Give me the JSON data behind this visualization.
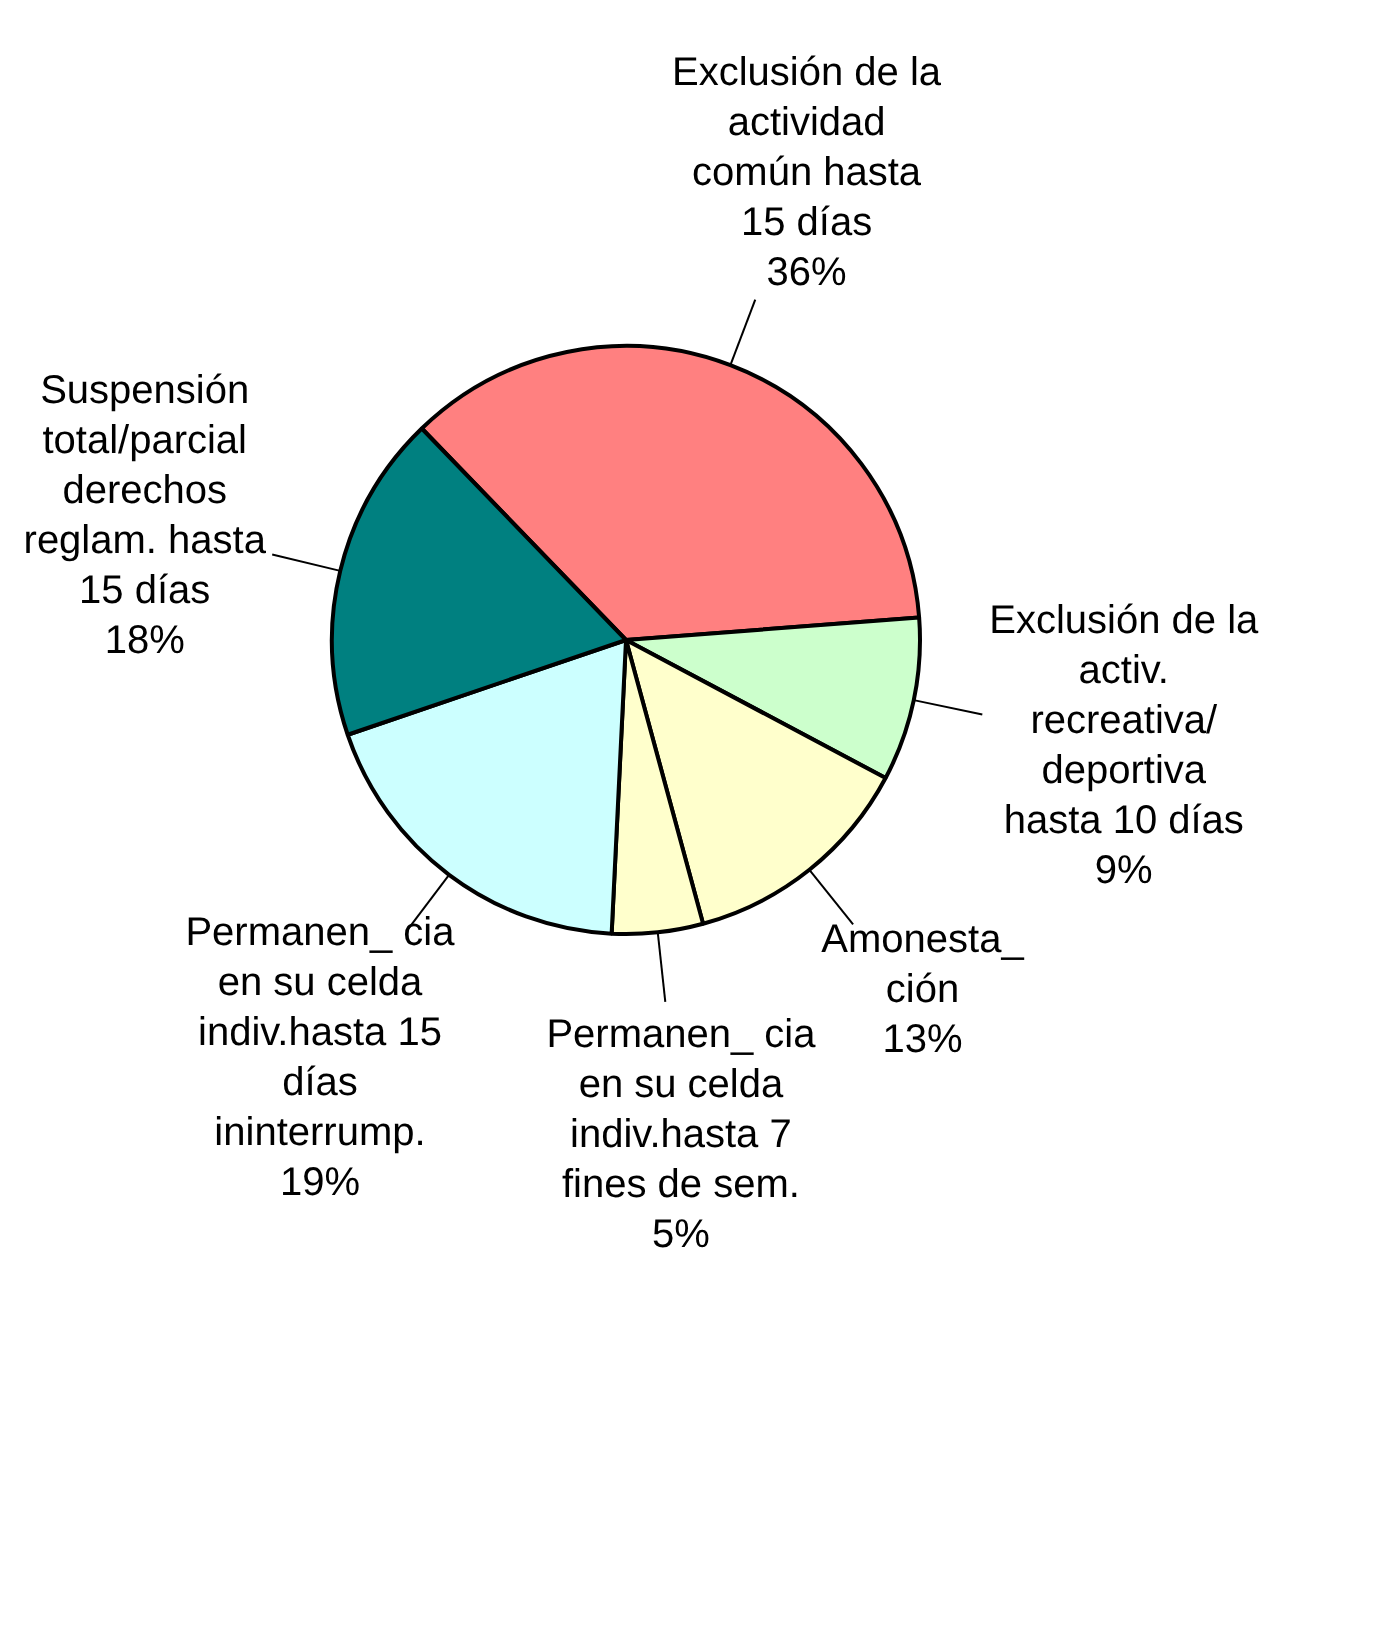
{
  "chart_data": {
    "type": "pie",
    "categories": [
      "Exclusión de la actividad común hasta 15 días",
      "Exclusión de la activ. recreativa/ deportiva hasta 10 días",
      "Amonesta_ ción",
      "Permanen_ cia en su celda indiv.hasta 7 fines de sem.",
      "Permanen_ cia en su celda indiv.hasta 15 días ininterrump.",
      "Suspensión total/parcial derechos reglam. hasta 15 días"
    ],
    "values": [
      36,
      9,
      13,
      5,
      19,
      18
    ],
    "colors": [
      "#ff8080",
      "#ccffcc",
      "#ffffcc",
      "#ffffcc",
      "#ccffff",
      "#008080"
    ],
    "value_labels": [
      "36%",
      "9%",
      "13%",
      "5%",
      "19%",
      "18%"
    ],
    "legend": false
  }
}
